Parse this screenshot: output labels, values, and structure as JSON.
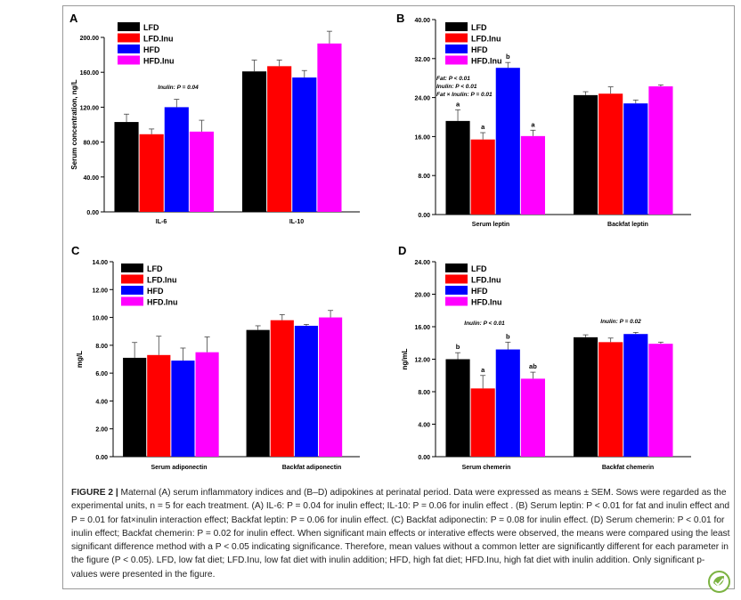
{
  "chart_data": [
    {
      "type": "bar",
      "panel_letter": "A",
      "ylabel": "Serum concentration, ng/L",
      "ylim": [
        0,
        200
      ],
      "yticks": [
        "0.00",
        "40.00",
        "80.00",
        "120.00",
        "160.00",
        "200.00"
      ],
      "categories": [
        "IL-6",
        "IL-10"
      ],
      "series": [
        {
          "name": "LFD",
          "color": "#000000",
          "values": [
            103,
            161
          ],
          "errors": [
            9,
            13
          ],
          "letters": [
            "",
            ""
          ]
        },
        {
          "name": "LFD.Inu",
          "color": "#ff0000",
          "values": [
            89,
            167
          ],
          "errors": [
            6,
            7
          ],
          "letters": [
            "",
            ""
          ]
        },
        {
          "name": "HFD",
          "color": "#0000ff",
          "values": [
            120,
            154
          ],
          "errors": [
            9,
            8
          ],
          "letters": [
            "",
            ""
          ]
        },
        {
          "name": "HFD.Inu",
          "color": "#ff00ff",
          "values": [
            92,
            193
          ],
          "errors": [
            13,
            14
          ],
          "letters": [
            "",
            ""
          ]
        }
      ],
      "annotations": [
        [
          "Inulin: P = 0.04"
        ]
      ],
      "legend": "top-left",
      "grid": false
    },
    {
      "type": "bar",
      "panel_letter": "B",
      "ylabel": "",
      "ylim": [
        0,
        40
      ],
      "yticks": [
        "0.00",
        "8.00",
        "16.00",
        "24.00",
        "32.00",
        "40.00"
      ],
      "categories": [
        "Serum leptin",
        "Backfat leptin"
      ],
      "series": [
        {
          "name": "LFD",
          "color": "#000000",
          "values": [
            19.2,
            24.5
          ],
          "errors": [
            2.3,
            0.7
          ],
          "letters": [
            "a",
            ""
          ]
        },
        {
          "name": "LFD.Inu",
          "color": "#ff0000",
          "values": [
            15.4,
            24.8
          ],
          "errors": [
            1.4,
            1.4
          ],
          "letters": [
            "a",
            ""
          ]
        },
        {
          "name": "HFD",
          "color": "#0000ff",
          "values": [
            30.1,
            22.8
          ],
          "errors": [
            1.1,
            0.7
          ],
          "letters": [
            "b",
            ""
          ]
        },
        {
          "name": "HFD.Inu",
          "color": "#ff00ff",
          "values": [
            16.1,
            26.3
          ],
          "errors": [
            1.2,
            0.3
          ],
          "letters": [
            "a",
            ""
          ]
        }
      ],
      "annotations": [
        [
          "Fat: P < 0.01",
          "Inulin: P < 0.01",
          "Fat × Inulin: P = 0.01"
        ]
      ],
      "legend": "top-left",
      "grid": false
    },
    {
      "type": "bar",
      "panel_letter": "C",
      "ylabel": "mg/L",
      "ylim": [
        0,
        14
      ],
      "yticks": [
        "0.00",
        "2.00",
        "4.00",
        "6.00",
        "8.00",
        "10.00",
        "12.00",
        "14.00"
      ],
      "categories": [
        "Serum adiponectin",
        "Backfat adiponectin"
      ],
      "series": [
        {
          "name": "LFD",
          "color": "#000000",
          "values": [
            7.1,
            9.1
          ],
          "errors": [
            1.1,
            0.3
          ],
          "letters": [
            "",
            ""
          ]
        },
        {
          "name": "LFD.Inu",
          "color": "#ff0000",
          "values": [
            7.3,
            9.8
          ],
          "errors": [
            1.35,
            0.4
          ],
          "letters": [
            "",
            ""
          ]
        },
        {
          "name": "HFD",
          "color": "#0000ff",
          "values": [
            6.9,
            9.4
          ],
          "errors": [
            0.9,
            0.1
          ],
          "letters": [
            "",
            ""
          ]
        },
        {
          "name": "HFD.Inu",
          "color": "#ff00ff",
          "values": [
            7.5,
            10.0
          ],
          "errors": [
            1.1,
            0.5
          ],
          "letters": [
            "",
            ""
          ]
        }
      ],
      "annotations": [],
      "legend": "top-left",
      "grid": false
    },
    {
      "type": "bar",
      "panel_letter": "D",
      "ylabel": "ng/mL",
      "ylim": [
        0,
        24
      ],
      "yticks": [
        "0.00",
        "4.00",
        "8.00",
        "12.00",
        "16.00",
        "20.00",
        "24.00"
      ],
      "categories": [
        "Serum chemerin",
        "Backfat chemerin"
      ],
      "series": [
        {
          "name": "LFD",
          "color": "#000000",
          "values": [
            12.0,
            14.7
          ],
          "errors": [
            0.8,
            0.3
          ],
          "letters": [
            "b",
            ""
          ]
        },
        {
          "name": "LFD.Inu",
          "color": "#ff0000",
          "values": [
            8.4,
            14.1
          ],
          "errors": [
            1.6,
            0.5
          ],
          "letters": [
            "a",
            ""
          ]
        },
        {
          "name": "HFD",
          "color": "#0000ff",
          "values": [
            13.2,
            15.1
          ],
          "errors": [
            0.9,
            0.2
          ],
          "letters": [
            "b",
            ""
          ]
        },
        {
          "name": "HFD.Inu",
          "color": "#ff00ff",
          "values": [
            9.6,
            13.9
          ],
          "errors": [
            0.8,
            0.2
          ],
          "letters": [
            "ab",
            ""
          ]
        }
      ],
      "annotations": [
        [
          "Inulin: P < 0.01"
        ],
        [
          "Inulin: P = 0.02"
        ]
      ],
      "legend": "top-left",
      "grid": false
    }
  ],
  "caption": {
    "lead": "FIGURE 2 |",
    "text": "Maternal (A) serum inflammatory indices and (B–D) adipokines at perinatal period. Data were expressed as means ± SEM. Sows were regarded as the experimental units, n = 5 for each treatment. (A) IL-6: P = 0.04 for inulin effect; IL-10: P = 0.06 for inulin effect . (B) Serum leptin: P < 0.01 for fat and inulin effect and P = 0.01 for fat×inulin interaction effect; Backfat leptin: P = 0.06 for inulin effect. (C) Backfat adiponectin: P = 0.08 for inulin effect. (D) Serum chemerin: P < 0.01 for inulin effect; Backfat chemerin: P = 0.02 for inulin effect. When significant main effects or interative effects were observed, the means were compared using the least significant difference method with a P < 0.05 indicating significance. Therefore, mean values without a common letter are significantly different for each parameter in the figure (P < 0.05). LFD, low fat diet; LFD.Inu, low fat diet with inulin addition; HFD, high fat diet; HFD.Inu, high fat diet with inulin addition. Only significant p-values were presented in the figure."
  },
  "colors": {
    "frame": "#9a9a9a",
    "logo": "#7cb342"
  },
  "logo_icon": "leaf-check-logo-icon"
}
